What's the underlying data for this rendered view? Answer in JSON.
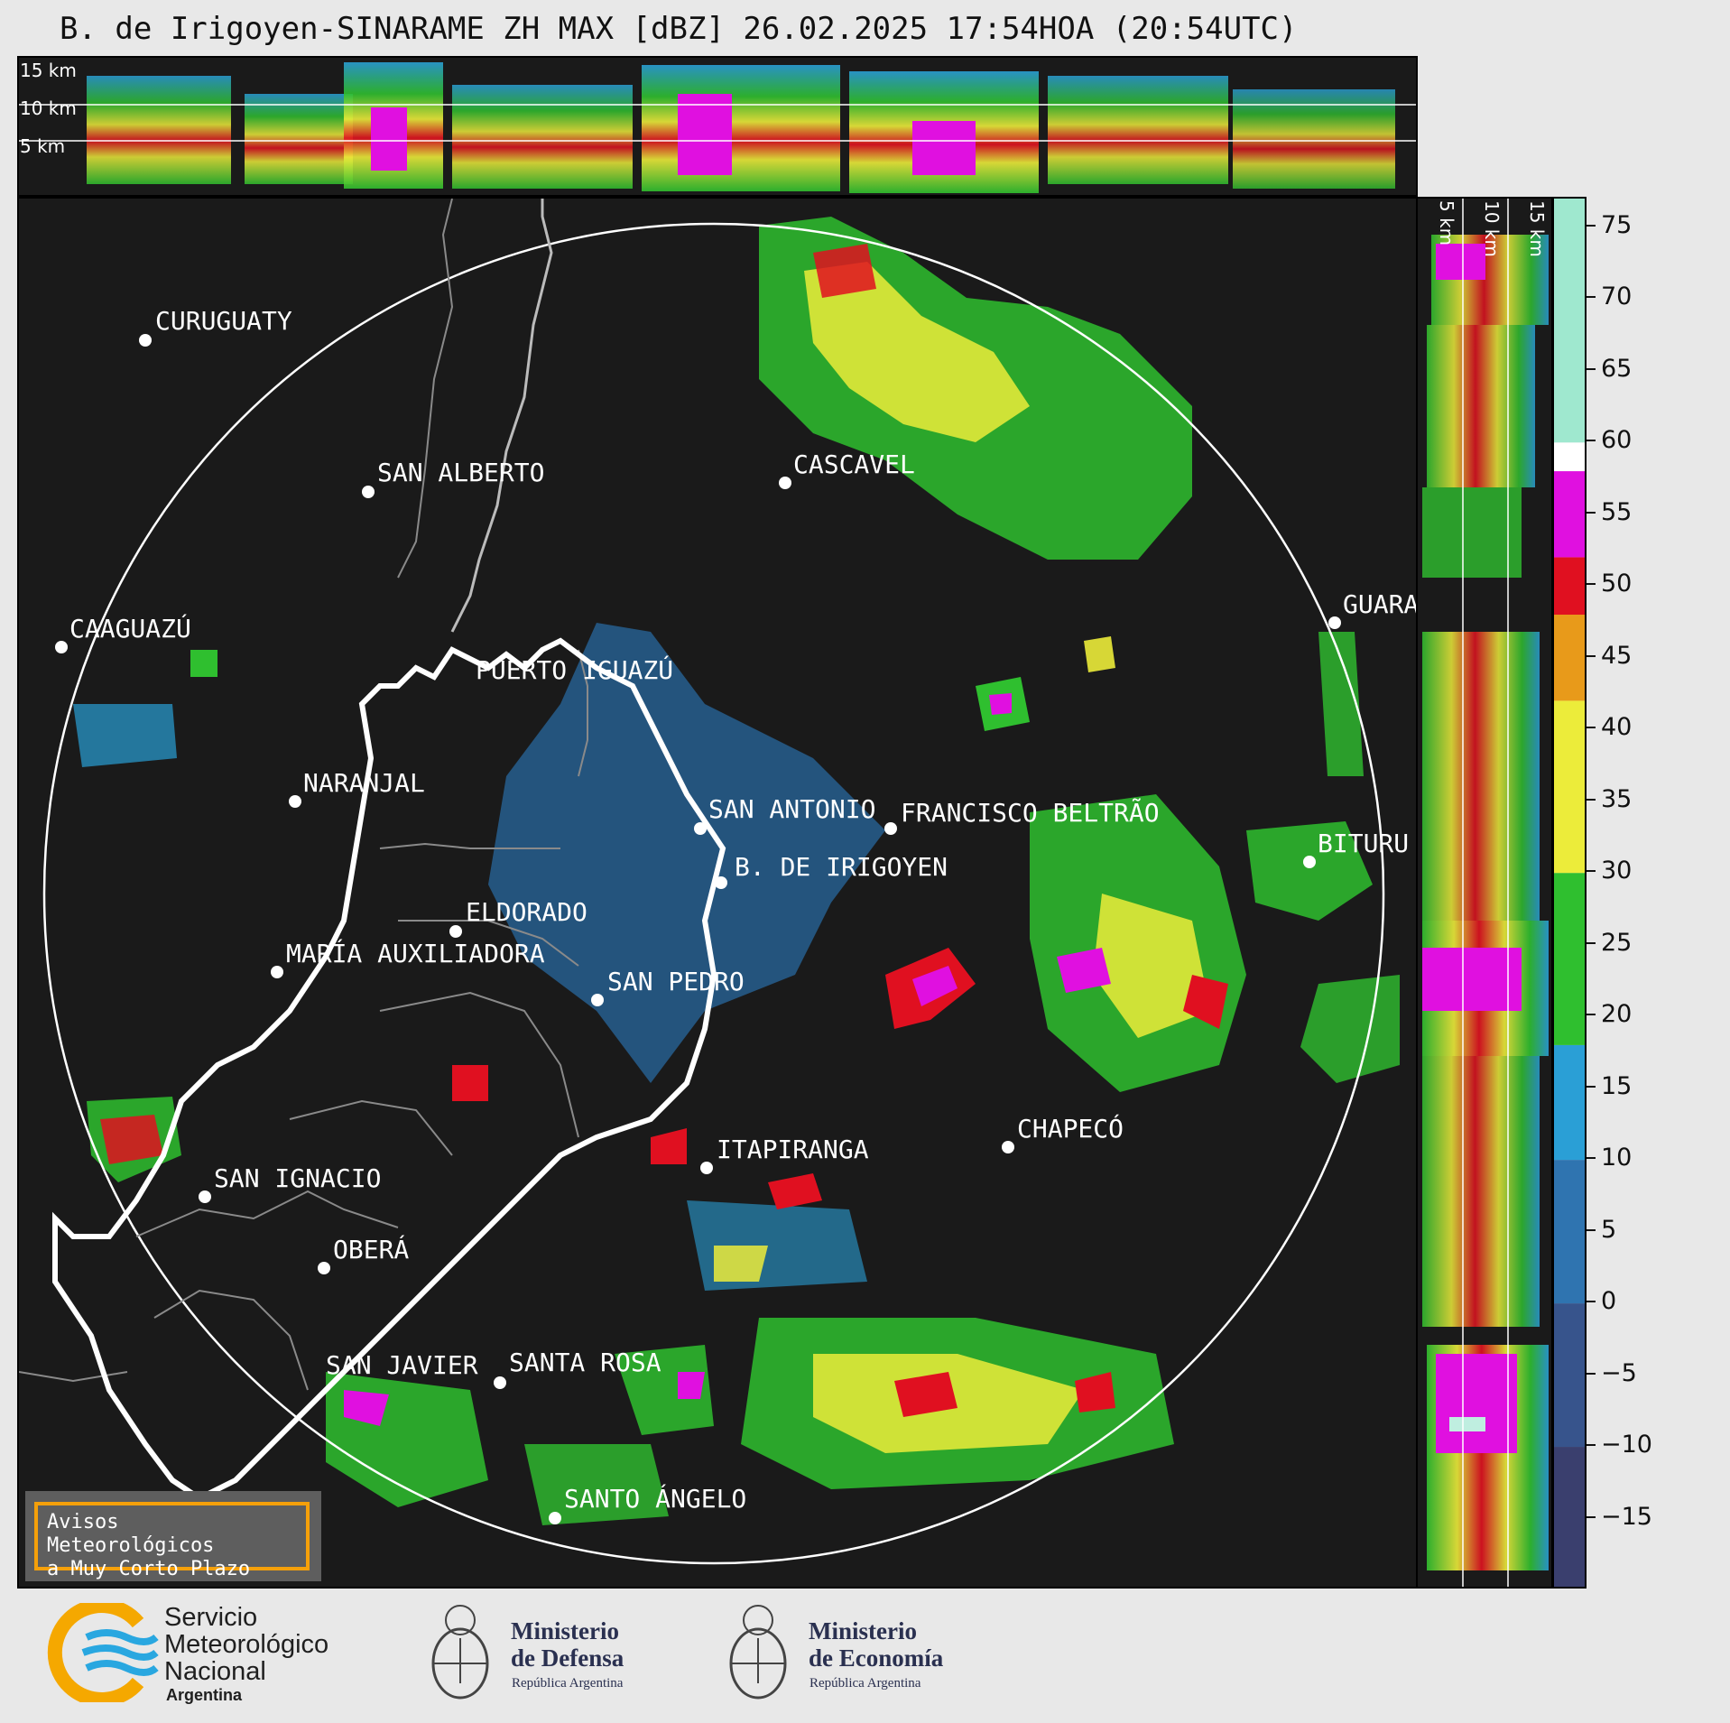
{
  "title": "B. de Irigoyen-SINARAME ZH MAX [dBZ] 26.02.2025 17:54HOA (20:54UTC)",
  "top_panel": {
    "altitudes": [
      "15 km",
      "10 km",
      "5 km"
    ]
  },
  "side_panel": {
    "altitudes": [
      "5 km",
      "10 km",
      "15 km"
    ]
  },
  "cities": [
    {
      "name": "CURUGUATY"
    },
    {
      "name": "SAN ALBERTO"
    },
    {
      "name": "CASCAVEL"
    },
    {
      "name": "CAAGUAZÚ"
    },
    {
      "name": "GUARA"
    },
    {
      "name": "PUERTO IGUAZÚ"
    },
    {
      "name": "NARANJAL"
    },
    {
      "name": "SAN ANTONIO"
    },
    {
      "name": "FRANCISCO BELTRÃO"
    },
    {
      "name": "BITURU"
    },
    {
      "name": "B. DE IRIGOYEN"
    },
    {
      "name": "ELDORADO"
    },
    {
      "name": "MARÍA AUXILIADORA"
    },
    {
      "name": "SAN PEDRO"
    },
    {
      "name": "ITAPIRANGA"
    },
    {
      "name": "CHAPECÓ"
    },
    {
      "name": "SAN IGNACIO"
    },
    {
      "name": "OBERÁ"
    },
    {
      "name": "SAN JAVIER"
    },
    {
      "name": "SANTA ROSA"
    },
    {
      "name": "SANTO ÁNGELO"
    }
  ],
  "colorbar": {
    "ticks": [
      "75",
      "70",
      "65",
      "60",
      "55",
      "50",
      "45",
      "40",
      "35",
      "30",
      "25",
      "20",
      "15",
      "10",
      "5",
      "0",
      "−5",
      "−10",
      "−15"
    ],
    "tick_values": [
      75,
      70,
      65,
      60,
      55,
      50,
      45,
      40,
      35,
      30,
      25,
      20,
      15,
      10,
      5,
      0,
      -5,
      -10,
      -15
    ],
    "range": [
      -20,
      77
    ],
    "colors": {
      "low": "#3a3f6e",
      "blue": "#2a9fd6",
      "green": "#2fbf2f",
      "yellow": "#ecec3a",
      "orange": "#e89a1a",
      "red": "#e01020",
      "magenta": "#e010e0",
      "white": "#ffffff",
      "mint": "#7fe0c0"
    }
  },
  "aviso": {
    "line1": "Avisos Meteorológicos",
    "line2": "a Muy Corto Plazo"
  },
  "logos": {
    "smn": {
      "line1": "Servicio",
      "line2": "Meteorológico",
      "line3": "Nacional",
      "line4": "Argentina"
    },
    "defensa": {
      "line1": "Ministerio",
      "line2": "de Defensa",
      "sub": "República Argentina"
    },
    "economia": {
      "line1": "Ministerio",
      "line2": "de Economía",
      "sub": "República Argentina"
    }
  }
}
